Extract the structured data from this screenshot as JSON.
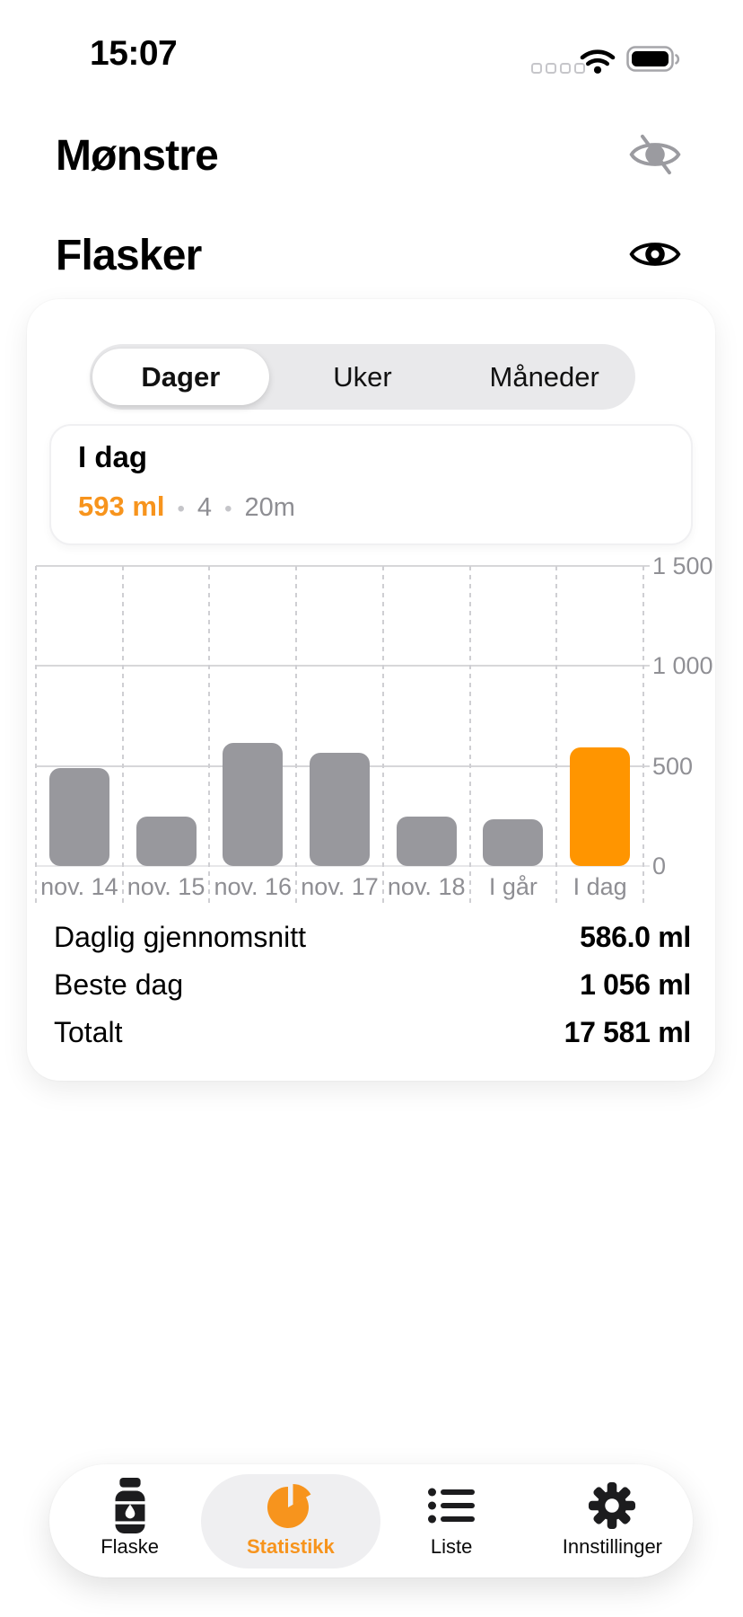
{
  "status_bar": {
    "time": "15:07"
  },
  "sections": [
    {
      "title": "Mønstre",
      "visibility_icon": "eye-slash-icon",
      "hidden": true
    },
    {
      "title": "Flasker",
      "visibility_icon": "eye-icon",
      "hidden": false
    }
  ],
  "segmented_control": {
    "options": [
      "Dager",
      "Uker",
      "Måneder"
    ],
    "selected": "Dager"
  },
  "today_card": {
    "title": "I dag",
    "volume": "593 ml",
    "bullet": "•",
    "feedings": "4",
    "duration": "20m"
  },
  "chart_data": {
    "type": "bar",
    "categories": [
      "nov. 14",
      "nov. 15",
      "nov. 16",
      "nov. 17",
      "nov. 18",
      "I går",
      "I dag"
    ],
    "values": [
      490,
      245,
      615,
      565,
      245,
      235,
      593
    ],
    "unit": "ml",
    "highlight_index": 6,
    "highlight_category": "I dag",
    "ylim": [
      0,
      1500
    ],
    "y_ticks": [
      {
        "value": 0,
        "label": "0"
      },
      {
        "value": 500,
        "label": "500"
      },
      {
        "value": 1000,
        "label": "1 000"
      },
      {
        "value": 1500,
        "label": "1 500"
      }
    ],
    "grid": true,
    "legend": "none",
    "bar_color": "#98989d",
    "highlight_color": "#ff9500"
  },
  "stats": [
    {
      "label": "Daglig gjennomsnitt",
      "value": "586.0 ml"
    },
    {
      "label": "Beste dag",
      "value": "1 056 ml"
    },
    {
      "label": "Totalt",
      "value": "17 581 ml"
    }
  ],
  "tab_bar": {
    "items": [
      {
        "label": "Flaske",
        "icon": "bottle-icon",
        "active": false
      },
      {
        "label": "Statistikk",
        "icon": "pie-chart-icon",
        "active": true
      },
      {
        "label": "Liste",
        "icon": "list-icon",
        "active": false
      },
      {
        "label": "Innstillinger",
        "icon": "gear-icon",
        "active": false
      }
    ]
  },
  "colors": {
    "accent": "#ff9500",
    "accent_text": "#f7941d",
    "bar_gray": "#98989d",
    "text_gray": "#8e8e93"
  }
}
